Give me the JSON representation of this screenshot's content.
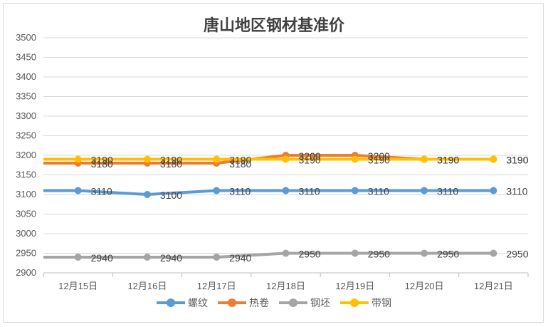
{
  "chart_data": {
    "type": "line",
    "title": "唐山地区钢材基准价",
    "categories": [
      "12月15日",
      "12月16日",
      "12月17日",
      "12月18日",
      "12月19日",
      "12月20日",
      "12月21日"
    ],
    "ylim": [
      2900,
      3500
    ],
    "yticks": [
      2900,
      2950,
      3000,
      3050,
      3100,
      3150,
      3200,
      3250,
      3300,
      3350,
      3400,
      3450,
      3500
    ],
    "grid": true,
    "legend_position": "bottom",
    "series": [
      {
        "name": "螺纹",
        "color": "#5b9bd5",
        "values": [
          3110,
          3100,
          3110,
          3110,
          3110,
          3110,
          3110
        ]
      },
      {
        "name": "热卷",
        "color": "#ed7d31",
        "values": [
          3180,
          3180,
          3180,
          3200,
          3200,
          3190,
          3190
        ]
      },
      {
        "name": "钢坯",
        "color": "#a5a5a5",
        "values": [
          2940,
          2940,
          2940,
          2950,
          2950,
          2950,
          2950
        ]
      },
      {
        "name": "带钢",
        "color": "#ffc000",
        "values": [
          3190,
          3190,
          3190,
          3190,
          3190,
          3190,
          3190
        ]
      }
    ]
  }
}
